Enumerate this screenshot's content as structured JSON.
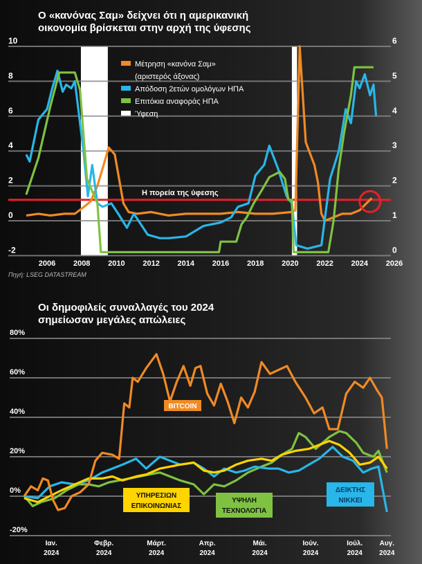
{
  "chart_data": [
    {
      "type": "line",
      "title": [
        "Ο «κανόνας Σαμ» δείχνει ότι η αμερικανική",
        "οικονομία βρίσκεται στην αρχή της ύφεσης"
      ],
      "source": "Πηγή: LSEG DATASTREAM",
      "x_ticks": [
        2006,
        2008,
        2010,
        2012,
        2014,
        2016,
        2018,
        2020,
        2022,
        2024,
        2026
      ],
      "xlim": [
        2004.5,
        2026
      ],
      "left_axis": {
        "ticks": [
          -2,
          0,
          2,
          4,
          6,
          8,
          10
        ],
        "ylim": [
          -2,
          10
        ]
      },
      "right_axis": {
        "ticks": [
          0,
          1,
          2,
          3,
          4,
          5,
          6
        ],
        "ylim": [
          0,
          6
        ]
      },
      "legend": [
        "Μέτρηση «κανόνα Σαμ»",
        "(αριστερός άξονας)",
        "Απόδοση 2ετών ομολόγων ΗΠΑ",
        "Επιτόκια αναφοράς ΗΠΑ",
        "Ύφεση"
      ],
      "threshold": {
        "label": "Η πορεία της ύφεσης",
        "value": 1.2,
        "axis": "left",
        "color": "#e8202a"
      },
      "recessions": [
        [
          2007.95,
          2009.5
        ],
        [
          2020.1,
          2020.4
        ]
      ],
      "series": [
        {
          "name": "Μέτρηση «κανόνα Σαμ»",
          "axis": "left",
          "color": "#f08a24",
          "x": [
            2004.8,
            2005.5,
            2006.2,
            2007,
            2007.6,
            2008,
            2008.5,
            2008.9,
            2009.2,
            2009.55,
            2009.9,
            2010.4,
            2010.7,
            2011.2,
            2012,
            2013,
            2014,
            2015,
            2016,
            2017,
            2018,
            2019,
            2020.1,
            2020.3,
            2020.55,
            2020.9,
            2021.4,
            2021.6,
            2021.8,
            2022,
            2022.5,
            2023,
            2023.5,
            2024,
            2024.4,
            2024.7
          ],
          "y": [
            0.3,
            0.4,
            0.3,
            0.4,
            0.4,
            0.7,
            1.1,
            2.0,
            3.0,
            4.2,
            3.8,
            1.0,
            0.5,
            0.4,
            0.5,
            0.3,
            0.4,
            0.4,
            0.4,
            0.5,
            0.4,
            0.4,
            0.5,
            0.6,
            10,
            4.5,
            3.2,
            2.2,
            0.4,
            0.0,
            0.2,
            0.4,
            0.4,
            0.6,
            1.0,
            1.3
          ]
        },
        {
          "name": "Απόδοση 2ετών ομολόγων ΗΠΑ",
          "axis": "right",
          "color": "#29b6e8",
          "x": [
            2004.8,
            2005,
            2005.5,
            2006,
            2006.3,
            2006.6,
            2006.9,
            2007.1,
            2007.4,
            2007.6,
            2007.8,
            2008.1,
            2008.35,
            2008.6,
            2008.9,
            2009.2,
            2009.7,
            2010.1,
            2010.6,
            2011,
            2011.4,
            2011.8,
            2012.5,
            2013,
            2014,
            2015,
            2016,
            2016.6,
            2017,
            2017.6,
            2018,
            2018.5,
            2018.8,
            2019.3,
            2019.8,
            2020.1,
            2020.35,
            2021,
            2021.8,
            2022.3,
            2022.8,
            2023.2,
            2023.5,
            2023.8,
            2024,
            2024.3,
            2024.6,
            2024.8,
            2024.95
          ],
          "y": [
            2.9,
            2.7,
            3.9,
            4.2,
            4.8,
            5.3,
            4.7,
            4.9,
            4.8,
            5.0,
            4.2,
            3.0,
            1.7,
            2.6,
            1.5,
            1.4,
            1.5,
            1.2,
            0.8,
            1.2,
            0.9,
            0.6,
            0.5,
            0.5,
            0.55,
            0.85,
            0.95,
            1.1,
            1.4,
            1.5,
            2.3,
            2.6,
            3.15,
            2.5,
            1.7,
            1.5,
            0.3,
            0.2,
            0.3,
            2.2,
            3.0,
            4.2,
            3.8,
            5.0,
            4.8,
            5.2,
            4.6,
            4.9,
            4.0
          ]
        },
        {
          "name": "Επιτόκια αναφοράς ΗΠΑ",
          "axis": "right",
          "color": "#7fc242",
          "x": [
            2004.8,
            2005.5,
            2006.2,
            2006.7,
            2007.6,
            2007.9,
            2008.3,
            2008.9,
            2009.1,
            2015.9,
            2016,
            2016.9,
            2017.2,
            2017.5,
            2017.9,
            2018.4,
            2018.8,
            2019.4,
            2019.7,
            2019.9,
            2020.1,
            2020.2,
            2022.2,
            2022.5,
            2022.8,
            2023.1,
            2023.5,
            2023.7,
            2024.8
          ],
          "y": [
            1.75,
            2.8,
            4.3,
            5.25,
            5.25,
            4.75,
            2.2,
            1.5,
            0.1,
            0.1,
            0.4,
            0.4,
            0.9,
            1.1,
            1.5,
            1.9,
            2.25,
            2.4,
            2.2,
            1.6,
            1.6,
            0.1,
            0.1,
            1.0,
            2.5,
            3.5,
            4.6,
            5.4,
            5.4
          ]
        }
      ],
      "highlight_marker": {
        "x": 2024.6,
        "value": 1.1,
        "axis": "left",
        "shape": "circle",
        "color": "#e8202a"
      }
    },
    {
      "type": "line",
      "title": [
        "Οι δημοφιλείς συναλλαγές του 2024",
        "σημείωσαν μεγάλες απώλειες"
      ],
      "ylim": [
        -20,
        80
      ],
      "y_ticks": [
        "80%",
        "60%",
        "40%",
        "20%",
        "0%",
        "-20%"
      ],
      "y_tick_values": [
        80,
        60,
        40,
        20,
        0,
        -20
      ],
      "x_unit": "days since late Dec 2023",
      "xlim": [
        0,
        214
      ],
      "x_ticks": [
        {
          "day": 16,
          "label": [
            "Ιαν.",
            "2024"
          ]
        },
        {
          "day": 47,
          "label": [
            "Φεβρ.",
            "2024"
          ]
        },
        {
          "day": 78,
          "label": [
            "Μάρτ.",
            "2024"
          ]
        },
        {
          "day": 108,
          "label": [
            "Απρ.",
            "2024"
          ]
        },
        {
          "day": 139,
          "label": [
            "Μάι.",
            "2024"
          ]
        },
        {
          "day": 169,
          "label": [
            "Ιούν.",
            "2024"
          ]
        },
        {
          "day": 195,
          "label": [
            "Ιούλ.",
            "2024"
          ]
        },
        {
          "day": 214,
          "label": [
            "Αυγ.",
            "2024"
          ]
        }
      ],
      "series": [
        {
          "name": "BITCOIN",
          "label": [
            "BITCOIN"
          ],
          "color": "#f08a24",
          "x": [
            0,
            4,
            8,
            11,
            14,
            17,
            20,
            24,
            28,
            33,
            38,
            42,
            46,
            52,
            56,
            59,
            62,
            64,
            67,
            72,
            78,
            82,
            86,
            90,
            94,
            98,
            101,
            104,
            108,
            112,
            116,
            120,
            124,
            128,
            132,
            136,
            140,
            145,
            150,
            155,
            160,
            166,
            171,
            176,
            180,
            185,
            190,
            195,
            200,
            204,
            208,
            211,
            214
          ],
          "y": [
            0,
            5,
            3,
            9,
            8,
            -2,
            -7,
            -6,
            0,
            2,
            6,
            18,
            22,
            21,
            19,
            47,
            45,
            60,
            58,
            65,
            72,
            62,
            48,
            58,
            66,
            56,
            65,
            66,
            52,
            46,
            57,
            48,
            37,
            50,
            45,
            53,
            68,
            62,
            64,
            66,
            58,
            50,
            42,
            45,
            34,
            34,
            52,
            58,
            55,
            60,
            54,
            50,
            24
          ]
        },
        {
          "name": "ΔΕΙΚΤΗΣ ΝΙΚΚΕΙ",
          "label": [
            "ΔΕΙΚΤΗΣ",
            "ΝΙΚΚΕΙ"
          ],
          "color": "#29b6e8",
          "x": [
            0,
            8,
            15,
            22,
            30,
            38,
            46,
            52,
            58,
            66,
            72,
            80,
            86,
            92,
            100,
            106,
            112,
            118,
            125,
            130,
            136,
            144,
            150,
            156,
            162,
            168,
            174,
            182,
            188,
            194,
            200,
            205,
            209,
            214
          ],
          "y": [
            0,
            -1,
            5,
            7,
            6,
            8,
            12,
            14,
            16,
            19,
            14,
            20,
            18,
            16,
            17,
            14,
            10,
            14,
            12,
            13,
            15,
            14,
            14,
            12,
            13,
            16,
            19,
            25,
            20,
            18,
            12,
            14,
            15,
            -8
          ]
        },
        {
          "name": "ΥΠΗΡΕΣΙΩΝ ΕΠΙΚΟΙΝΩΝΙΑΣ",
          "label": [
            "ΥΠΗΡΕΣΙΩΝ",
            "ΕΠΙΚΟΙΝΩΝΙΑΣ"
          ],
          "color": "#ffd400",
          "x": [
            0,
            8,
            15,
            22,
            30,
            38,
            46,
            52,
            58,
            66,
            72,
            80,
            86,
            92,
            100,
            106,
            112,
            118,
            125,
            132,
            140,
            146,
            152,
            160,
            168,
            174,
            180,
            186,
            192,
            198,
            204,
            209,
            214
          ],
          "y": [
            -1,
            -3,
            0,
            3,
            6,
            9,
            9,
            10,
            8,
            10,
            11,
            14,
            15,
            16,
            17,
            13,
            12,
            13,
            16,
            18,
            19,
            18,
            21,
            23,
            24,
            26,
            28,
            26,
            22,
            16,
            17,
            20,
            14
          ]
        },
        {
          "name": "ΥΨΗΛΗ ΤΕΧΝΟΛΟΓΙΑ",
          "label": [
            "ΥΨΗΛΗ",
            "ΤΕΧΝΟΛΟΓΙΑ"
          ],
          "color": "#7fc242",
          "x": [
            0,
            5,
            10,
            18,
            25,
            32,
            38,
            44,
            50,
            56,
            62,
            68,
            74,
            80,
            86,
            92,
            100,
            106,
            112,
            118,
            125,
            132,
            140,
            146,
            152,
            158,
            162,
            166,
            172,
            180,
            186,
            190,
            196,
            200,
            206,
            209,
            214
          ],
          "y": [
            0,
            -5,
            -3,
            -1,
            3,
            6,
            6,
            5,
            7,
            8,
            9,
            10,
            11,
            12,
            10,
            8,
            6,
            1,
            6,
            5,
            8,
            12,
            15,
            17,
            21,
            24,
            32,
            30,
            24,
            30,
            33,
            32,
            27,
            22,
            20,
            23,
            12
          ]
        }
      ]
    }
  ]
}
